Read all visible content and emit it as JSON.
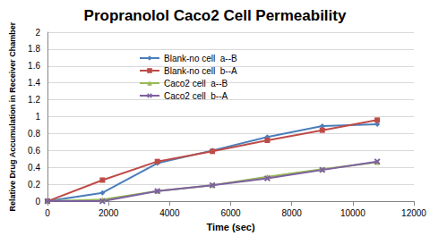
{
  "chart_data": {
    "type": "line",
    "title": "Propranolol Caco2 Cell Permeability",
    "xlabel": "Time (sec)",
    "ylabel": "Relative Drug Accumulation in Receiver Chamber",
    "x": [
      0,
      1800,
      3600,
      5400,
      7200,
      9000,
      10800
    ],
    "series": [
      {
        "name": "Blank-no cell  a--B",
        "color": "#4a7ebb",
        "marker": "diamond",
        "values": [
          0,
          0.1,
          0.45,
          0.6,
          0.76,
          0.89,
          0.91
        ]
      },
      {
        "name": "Blank-no cell  b--A",
        "color": "#be4b48",
        "marker": "square",
        "values": [
          0,
          0.25,
          0.47,
          0.59,
          0.72,
          0.84,
          0.96
        ]
      },
      {
        "name": "Caco2 cell  a--B",
        "color": "#98b954",
        "marker": "triangle",
        "values": [
          0,
          0.02,
          0.12,
          0.19,
          0.29,
          0.38,
          0.46
        ]
      },
      {
        "name": "Caco2 cell  b--A",
        "color": "#7d60a0",
        "marker": "x",
        "values": [
          0,
          0,
          0.12,
          0.19,
          0.27,
          0.37,
          0.47
        ]
      }
    ],
    "xlim": [
      0,
      12000
    ],
    "xticks": [
      0,
      2000,
      4000,
      6000,
      8000,
      10000,
      12000
    ],
    "ylim": [
      0,
      2
    ],
    "yticks": [
      0,
      0.2,
      0.4,
      0.6,
      0.8,
      1,
      1.2,
      1.4,
      1.6,
      1.8,
      2
    ],
    "grid": true,
    "legend": "upper left"
  }
}
